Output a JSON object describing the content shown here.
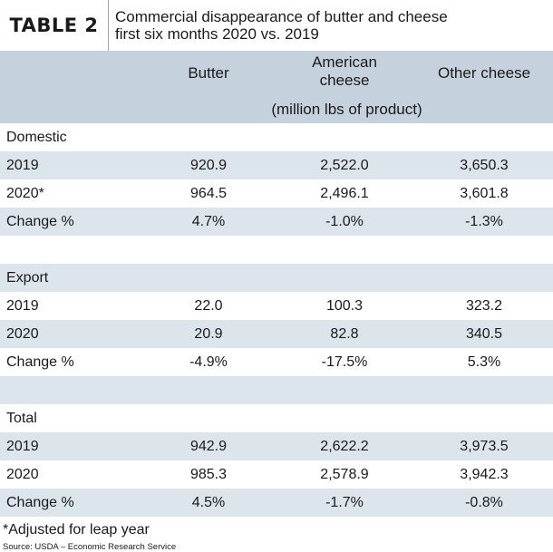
{
  "header": {
    "tag": "TABLE 2",
    "title_line1": "Commercial disappearance of butter and cheese",
    "title_line2": "first six months 2020 vs. 2019"
  },
  "columns": {
    "butter": "Butter",
    "american_line1": "American",
    "american_line2": "cheese",
    "other": "Other cheese",
    "unit": "(million lbs of product)"
  },
  "rows": [
    {
      "label": "Domestic",
      "butter": "",
      "american": "",
      "other": ""
    },
    {
      "label": "2019",
      "butter": "920.9",
      "american": "2,522.0",
      "other": "3,650.3"
    },
    {
      "label": "2020*",
      "butter": "964.5",
      "american": "2,496.1",
      "other": "3,601.8"
    },
    {
      "label": "Change %",
      "butter": "4.7%",
      "american": "-1.0%",
      "other": "-1.3%"
    },
    {
      "label": "",
      "butter": "",
      "american": "",
      "other": ""
    },
    {
      "label": "Export",
      "butter": "",
      "american": "",
      "other": ""
    },
    {
      "label": "2019",
      "butter": "22.0",
      "american": "100.3",
      "other": "323.2"
    },
    {
      "label": "2020",
      "butter": "20.9",
      "american": "82.8",
      "other": "340.5"
    },
    {
      "label": "Change %",
      "butter": "-4.9%",
      "american": "-17.5%",
      "other": "5.3%"
    },
    {
      "label": "",
      "butter": "",
      "american": "",
      "other": ""
    },
    {
      "label": "Total",
      "butter": "",
      "american": "",
      "other": ""
    },
    {
      "label": "2019",
      "butter": "942.9",
      "american": "2,622.2",
      "other": "3,973.5"
    },
    {
      "label": "2020",
      "butter": "985.3",
      "american": "2,578.9",
      "other": "3,942.3"
    },
    {
      "label": "Change %",
      "butter": "4.5%",
      "american": "-1.7%",
      "other": "-0.8%"
    }
  ],
  "footnote": "*Adjusted for leap year",
  "source": "Source: USDA – Economic Research Service",
  "colors": {
    "header_band": "#c5d2dd",
    "stripe": "#dce5ec"
  }
}
